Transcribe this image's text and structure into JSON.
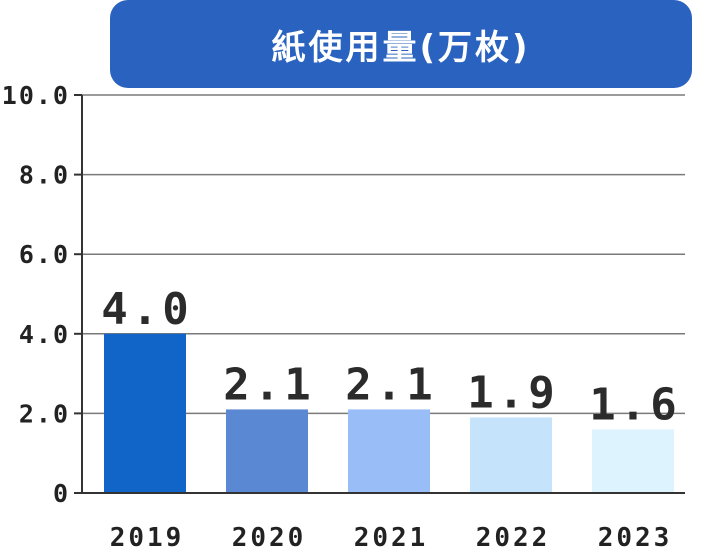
{
  "chart_data": {
    "type": "bar",
    "title": "紙使用量(万枚)",
    "categories": [
      "2019",
      "2020",
      "2021",
      "2022",
      "2023"
    ],
    "values": [
      4.0,
      2.1,
      2.1,
      1.9,
      1.6
    ],
    "value_labels": [
      "4.0",
      "2.1",
      "2.1",
      "1.9",
      "1.6"
    ],
    "bar_colors": [
      "#1165C8",
      "#5A88D3",
      "#99BDF6",
      "#C6E3FC",
      "#DDF3FD"
    ],
    "yticks": [
      {
        "value": 0,
        "label": "0"
      },
      {
        "value": 2,
        "label": "2.0"
      },
      {
        "value": 4,
        "label": "4.0"
      },
      {
        "value": 6,
        "label": "6.0"
      },
      {
        "value": 8,
        "label": "8.0"
      },
      {
        "value": 10,
        "label": "10.0"
      }
    ],
    "ylim": [
      0,
      10
    ],
    "grid": true,
    "xlabel": "",
    "ylabel": ""
  },
  "colors": {
    "title_bg": "#2A63BF",
    "grid": "#7a7a7a",
    "axis": "#333333"
  }
}
